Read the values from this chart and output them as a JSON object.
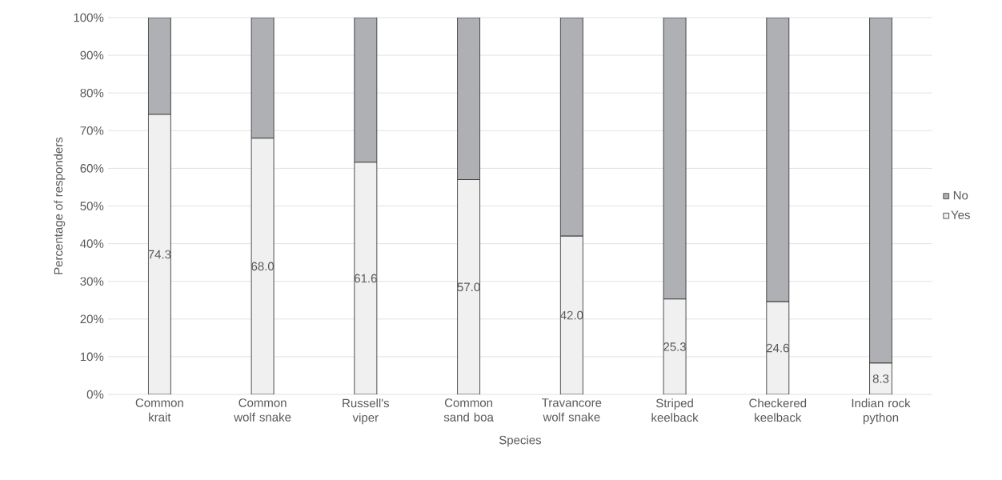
{
  "chart_data": {
    "type": "bar",
    "stacked": true,
    "xlabel": "Species",
    "ylabel": "Percentage of responders",
    "categories": [
      "Common krait",
      "Common wolf snake",
      "Russell's viper",
      "Common sand boa",
      "Travancore wolf snake",
      "Striped keelback",
      "Checkered keelback",
      "Indian rock python"
    ],
    "series": [
      {
        "name": "Yes",
        "color": "#eff0ef",
        "values": [
          74.3,
          68.0,
          61.6,
          57.0,
          42.0,
          25.3,
          24.6,
          8.3
        ],
        "value_labels": [
          "74.3",
          "68.0",
          "61.6",
          "57.0",
          "42.0",
          "25.3",
          "24.6",
          "8.3"
        ]
      },
      {
        "name": "No",
        "color": "#aeb0b3",
        "values": [
          25.7,
          32.0,
          38.4,
          43.0,
          58.0,
          74.7,
          75.4,
          91.7
        ]
      }
    ],
    "ylim": [
      0,
      100
    ],
    "yticks": [
      {
        "value": 0,
        "label": "0%"
      },
      {
        "value": 10,
        "label": "10%"
      },
      {
        "value": 20,
        "label": "20%"
      },
      {
        "value": 30,
        "label": "30%"
      },
      {
        "value": 40,
        "label": "40%"
      },
      {
        "value": 50,
        "label": "50%"
      },
      {
        "value": 60,
        "label": "60%"
      },
      {
        "value": 70,
        "label": "70%"
      },
      {
        "value": 80,
        "label": "80%"
      },
      {
        "value": 90,
        "label": "90%"
      },
      {
        "value": 100,
        "label": "100%"
      }
    ],
    "grid": "y",
    "legend": "right"
  }
}
